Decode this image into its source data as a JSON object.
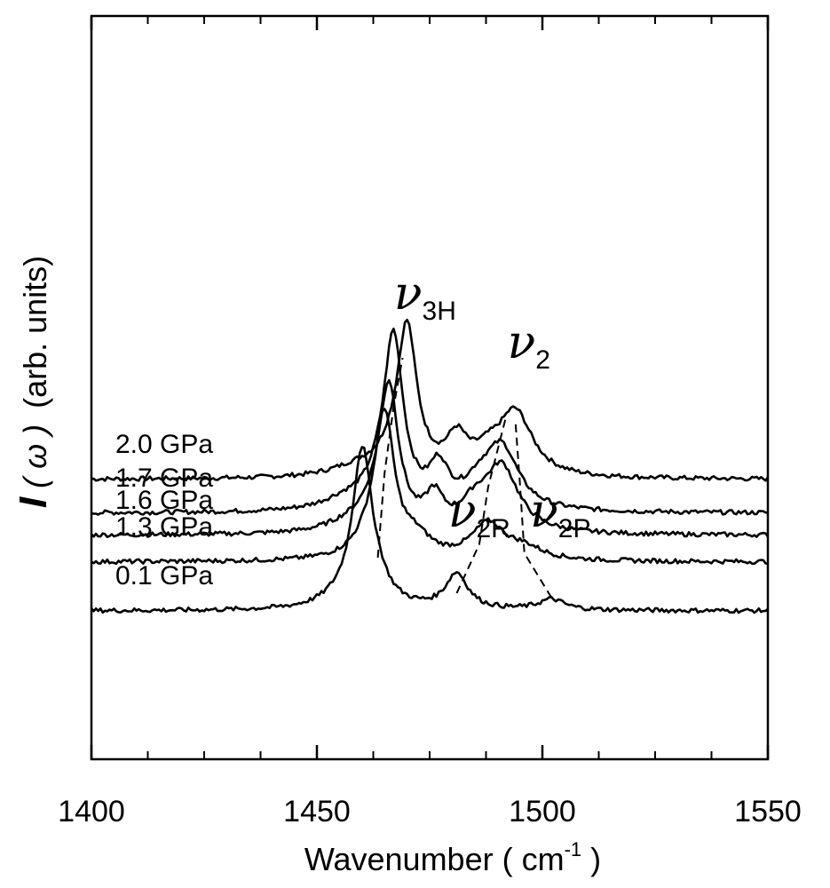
{
  "chart_data": {
    "type": "line",
    "title": "",
    "xlabel": "Wavenumber ( cm",
    "xlabel_sup": "-1",
    "xlabel_close": " )",
    "ylabel_symbol": "I",
    "ylabel_arg": " ( ω )",
    "ylabel_units": "(arb. units)",
    "xlim": [
      1400,
      1550
    ],
    "xticks": [
      "1400",
      "1450",
      "1500",
      "1550"
    ],
    "xtick_values": [
      1400,
      1450,
      1500,
      1550
    ],
    "y_ticks_shown": false,
    "grid": false,
    "series": [
      {
        "name": "2.0 GPa",
        "label": "2.0 GPa",
        "baseline": 0.93,
        "peaks": [
          {
            "center": 1470,
            "height": 1.6,
            "width": 2.6
          },
          {
            "center": 1467,
            "height": 0.18,
            "width": 4.0
          },
          {
            "center": 1459,
            "height": 0.1,
            "width": 7.0
          },
          {
            "center": 1481,
            "height": 0.38,
            "width": 2.8
          },
          {
            "center": 1494,
            "height": 0.71,
            "width": 4.6
          },
          {
            "center": 1488,
            "height": 0.18,
            "width": 4.0
          }
        ]
      },
      {
        "name": "1.7 GPa",
        "label": "1.7 GPa",
        "baseline": 0.55,
        "peaks": [
          {
            "center": 1467,
            "height": 1.85,
            "width": 2.6
          },
          {
            "center": 1464,
            "height": 0.22,
            "width": 4.0
          },
          {
            "center": 1456,
            "height": 0.1,
            "width": 6.0
          },
          {
            "center": 1477,
            "height": 0.43,
            "width": 2.6
          },
          {
            "center": 1491,
            "height": 0.68,
            "width": 4.5
          },
          {
            "center": 1486,
            "height": 0.22,
            "width": 4.0
          }
        ]
      },
      {
        "name": "1.6 GPa",
        "label": "1.6 GPa",
        "baseline": 0.3,
        "peaks": [
          {
            "center": 1466,
            "height": 1.55,
            "width": 2.6
          },
          {
            "center": 1463,
            "height": 0.2,
            "width": 4.0
          },
          {
            "center": 1457,
            "height": 0.08,
            "width": 6.0
          },
          {
            "center": 1476,
            "height": 0.35,
            "width": 2.4
          },
          {
            "center": 1491,
            "height": 0.72,
            "width": 4.5
          },
          {
            "center": 1485,
            "height": 0.25,
            "width": 4.0
          }
        ]
      },
      {
        "name": "1.3 GPa",
        "label": "1.3 GPa",
        "baseline": 0.0,
        "peaks": [
          {
            "center": 1465,
            "height": 1.55,
            "width": 2.6
          },
          {
            "center": 1462,
            "height": 0.2,
            "width": 4.0
          },
          {
            "center": 1472,
            "height": 0.2,
            "width": 4.0
          },
          {
            "center": 1488,
            "height": 0.4,
            "width": 4.5
          },
          {
            "center": 1496,
            "height": 0.12,
            "width": 5.0
          }
        ]
      },
      {
        "name": "0.1 GPa",
        "label": "0.1 GPa",
        "baseline": -0.55,
        "peaks": [
          {
            "center": 1460,
            "height": 1.7,
            "width": 2.6
          },
          {
            "center": 1463,
            "height": 0.2,
            "width": 3.5
          },
          {
            "center": 1455,
            "height": 0.08,
            "width": 5.0
          },
          {
            "center": 1481,
            "height": 0.4,
            "width": 3.0
          },
          {
            "center": 1502,
            "height": 0.12,
            "width": 3.5
          }
        ]
      }
    ],
    "annotations": [
      {
        "name": "nu-3H-label",
        "symbol": "ν",
        "sub": "3H",
        "x": 1474,
        "y": 2.85
      },
      {
        "name": "nu-2-label",
        "symbol": "ν",
        "sub": "2",
        "x": 1497,
        "y": 2.3
      },
      {
        "name": "nu-2R-label",
        "symbol": "ν",
        "sub": "2R",
        "x": 1486,
        "y": 0.4
      },
      {
        "name": "nu-2P-label",
        "symbol": "ν",
        "sub": "2P",
        "x": 1504,
        "y": 0.4
      }
    ],
    "guide_lines": [
      {
        "name": "nu-3H-guide",
        "points": [
          [
            1463.5,
            0.05
          ],
          [
            1465,
            1.0
          ],
          [
            1467,
            1.75
          ],
          [
            1469,
            2.3
          ]
        ]
      },
      {
        "name": "nu-2R-guide",
        "points": [
          [
            1481,
            -0.35
          ],
          [
            1486,
            0.2
          ],
          [
            1488,
            0.85
          ],
          [
            1492,
            1.65
          ]
        ]
      },
      {
        "name": "nu-2P-guide",
        "points": [
          [
            1502,
            -0.4
          ],
          [
            1496,
            0.1
          ],
          [
            1495,
            0.9
          ],
          [
            1494,
            1.6
          ]
        ]
      }
    ]
  }
}
